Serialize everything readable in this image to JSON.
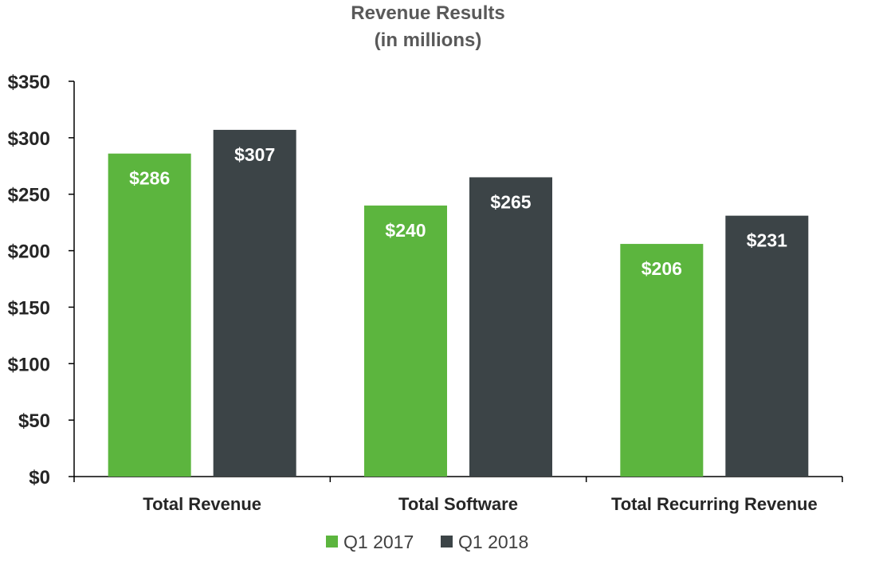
{
  "chart_data": {
    "type": "bar",
    "title": "Revenue Results",
    "subtitle": "(in millions)",
    "categories": [
      "Total Revenue",
      "Total Software",
      "Total Recurring Revenue"
    ],
    "series": [
      {
        "name": "Q1 2017",
        "values": [
          286,
          240,
          206
        ],
        "labels": [
          "$286",
          "$240",
          "$206"
        ],
        "color": "#5cb53e"
      },
      {
        "name": "Q1 2018",
        "values": [
          307,
          265,
          231
        ],
        "labels": [
          "$307",
          "$265",
          "$231"
        ],
        "color": "#3c4447"
      }
    ],
    "ylim": [
      0,
      350
    ],
    "yticks": [
      0,
      50,
      100,
      150,
      200,
      250,
      300,
      350
    ],
    "ytick_labels": [
      "$0",
      "$50",
      "$100",
      "$150",
      "$200",
      "$250",
      "$300",
      "$350"
    ],
    "xlabel": "",
    "ylabel": "",
    "grid": false,
    "legend_position": "bottom"
  }
}
